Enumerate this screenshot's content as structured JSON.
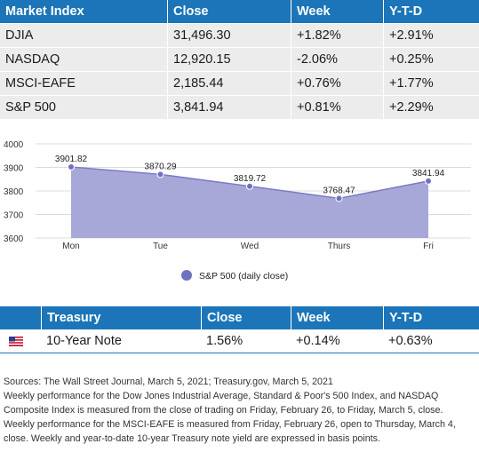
{
  "market_table": {
    "headers": [
      "Market Index",
      "Close",
      "Week",
      "Y-T-D"
    ],
    "rows": [
      [
        "DJIA",
        "31,496.30",
        "+1.82%",
        "+2.91%"
      ],
      [
        "NASDAQ",
        "12,920.15",
        "-2.06%",
        "+0.25%"
      ],
      [
        "MSCI-EAFE",
        "2,185.44",
        "+0.76%",
        "+1.77%"
      ],
      [
        "S&P 500",
        "3,841.94",
        "+0.81%",
        "+2.29%"
      ]
    ],
    "header_color": "#1b75b8",
    "row_color": "#ececec"
  },
  "chart_data": {
    "type": "area",
    "categories": [
      "Mon",
      "Tue",
      "Wed",
      "Thurs",
      "Fri"
    ],
    "series": [
      {
        "name": "S&P 500 (daily close)",
        "values": [
          3901.82,
          3870.29,
          3819.72,
          3768.47,
          3841.94
        ]
      }
    ],
    "data_labels": [
      "3901.82",
      "3870.29",
      "3819.72",
      "3768.47",
      "3841.94"
    ],
    "ylim": [
      3600,
      4000
    ],
    "yticks": [
      3600,
      3700,
      3800,
      3900,
      4000
    ],
    "title": "",
    "xlabel": "",
    "ylabel": "",
    "grid": true,
    "legend_position": "bottom",
    "fill_color": "#a8a8d8",
    "line_color": "#7b7bc6",
    "marker_color": "#6f72c0"
  },
  "treasury_table": {
    "headers": [
      "Treasury",
      "Close",
      "Week",
      "Y-T-D"
    ],
    "row": {
      "icon": "us-flag-icon",
      "name": "10-Year Note",
      "close": "1.56%",
      "week": "+0.14%",
      "ytd": "+0.63%"
    }
  },
  "notes": {
    "sources": "Sources: The Wall Street Journal, March 5, 2021; Treasury.gov, March 5, 2021",
    "line1": "Weekly performance for the Dow Jones Industrial Average, Standard & Poor's 500 Index, and NASDAQ Composite Index is measured from the close of trading on Friday, February 26, to Friday, March 5, close. Weekly performance for the MSCI-EAFE is measured from Friday, February 26, open to Thursday, March 4, close. Weekly and year-to-date 10-year Treasury note yield are expressed in basis points."
  }
}
